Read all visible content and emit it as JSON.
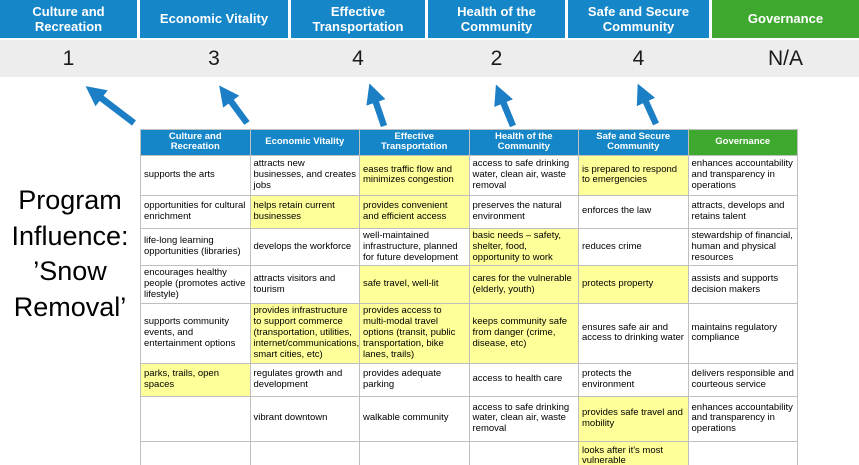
{
  "program_label": "Program Influence: ’Snow Removal’",
  "colors": {
    "pillar_blue": "#1586C8",
    "governance_green": "#3FA92F",
    "highlight_yellow": "#FFFF99",
    "arrow_blue": "#1C7FC5",
    "score_band_gray": "#EDEDED"
  },
  "pillars": [
    {
      "name": "Culture and Recreation",
      "score": "1"
    },
    {
      "name": "Economic Vitality",
      "score": "3"
    },
    {
      "name": "Effective Transportation",
      "score": "4"
    },
    {
      "name": "Health of the Community",
      "score": "2"
    },
    {
      "name": "Safe and Secure Community",
      "score": "4"
    },
    {
      "name": "Governance",
      "score": "N/A"
    }
  ],
  "table": {
    "headers": [
      "Culture and Recreation",
      "Economic Vitality",
      "Effective Transportation",
      "Health of the Community",
      "Safe and Secure Community",
      "Governance"
    ],
    "rows": [
      [
        {
          "text": "supports the arts"
        },
        {
          "text": "attracts new businesses, and creates jobs"
        },
        {
          "text": "eases traffic flow and minimizes congestion",
          "hl": true
        },
        {
          "text": "access to safe drinking water, clean air, waste removal"
        },
        {
          "text": "is prepared to respond to emergencies",
          "hl": true
        },
        {
          "text": "enhances accountability and transparency in operations"
        }
      ],
      [
        {
          "text": "opportunities for cultural enrichment"
        },
        {
          "text": "helps retain current businesses",
          "hl": true
        },
        {
          "text": "provides convenient and efficient access",
          "hl": true
        },
        {
          "text": "preserves the natural environment"
        },
        {
          "text": "enforces the law"
        },
        {
          "text": "attracts, develops and retains talent"
        }
      ],
      [
        {
          "text": "life-long learning opportunities (libraries)"
        },
        {
          "text": "develops the workforce"
        },
        {
          "text": "well-maintained infrastructure, planned for future development"
        },
        {
          "text": "basic needs – safety, shelter, food, opportunity to work",
          "hl": true
        },
        {
          "text": "reduces crime"
        },
        {
          "text": "stewardship of financial, human and physical resources"
        }
      ],
      [
        {
          "text": "encourages healthy people (promotes active lifestyle)"
        },
        {
          "text": "attracts visitors and tourism"
        },
        {
          "text": "safe travel, well-lit",
          "hl": true
        },
        {
          "text": "cares for the vulnerable (elderly, youth)",
          "hl": true
        },
        {
          "text": "protects property",
          "hl": true
        },
        {
          "text": "assists and supports decision makers"
        }
      ],
      [
        {
          "text": "supports community events, and entertainment options"
        },
        {
          "text": "provides infrastructure to support commerce (transportation, utilities, internet/communications, smart cities, etc)",
          "hl": true
        },
        {
          "text": "provides access to multi-modal travel options (transit, public transportation, bike lanes, trails)",
          "hl": true
        },
        {
          "text": "keeps community safe from danger (crime, disease, etc)",
          "hl": true
        },
        {
          "text": "ensures safe air and access to drinking water"
        },
        {
          "text": "maintains regulatory compliance"
        }
      ],
      [
        {
          "text": "parks, trails, open spaces",
          "hl": true
        },
        {
          "text": "regulates growth and development"
        },
        {
          "text": "provides adequate parking"
        },
        {
          "text": "access to health care"
        },
        {
          "text": "protects the environment"
        },
        {
          "text": "delivers responsible and courteous service"
        }
      ],
      [
        {
          "text": ""
        },
        {
          "text": "vibrant downtown"
        },
        {
          "text": "walkable community"
        },
        {
          "text": "access to safe drinking water, clean air, waste removal"
        },
        {
          "text": "provides safe travel and mobility",
          "hl": true
        },
        {
          "text": "enhances accountability and transparency in operations"
        }
      ],
      [
        {
          "text": ""
        },
        {
          "text": ""
        },
        {
          "text": ""
        },
        {
          "text": ""
        },
        {
          "text": "looks after it's most vulnerable",
          "hl": true
        },
        {
          "text": ""
        }
      ]
    ]
  }
}
